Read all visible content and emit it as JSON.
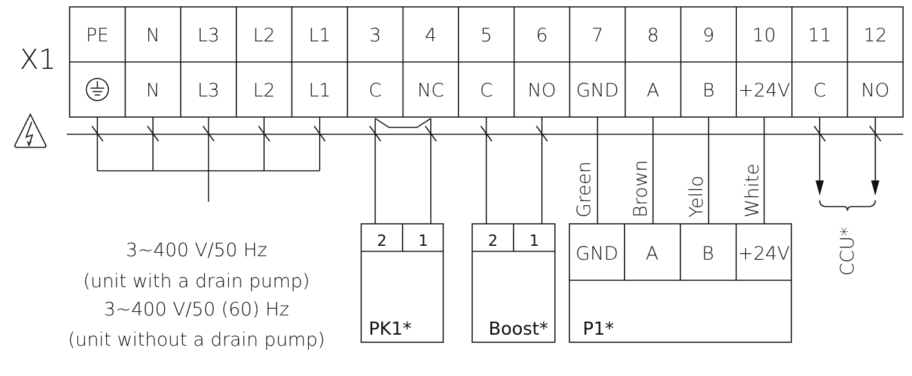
{
  "block": {
    "label": "X1",
    "top": [
      "PE",
      "N",
      "L3",
      "L2",
      "L1",
      "3",
      "4",
      "5",
      "6",
      "7",
      "8",
      "9",
      "10",
      "11",
      "12"
    ],
    "bottom": [
      "earth-icon",
      "N",
      "L3",
      "L2",
      "L1",
      "C",
      "NC",
      "C",
      "NO",
      "GND",
      "A",
      "B",
      "+24V",
      "C",
      "NO"
    ]
  },
  "wire_colors": [
    "Green",
    "Brown",
    "Yello",
    "White"
  ],
  "pk1": {
    "pins": [
      "2",
      "1"
    ],
    "label": "PK1*"
  },
  "boost": {
    "pins": [
      "2",
      "1"
    ],
    "label": "Boost*"
  },
  "p1": {
    "pins": [
      "GND",
      "A",
      "B",
      "+24V"
    ],
    "label": "P1*"
  },
  "ccu": {
    "label": "CCU*"
  },
  "supply": {
    "lines": [
      "3~400 V/50 Hz",
      "(unit with a drain pump)",
      "3~400 V/50 (60) Hz",
      "(unit without a drain pump)"
    ]
  },
  "icons": {
    "warning": "high-voltage-warning-icon",
    "earth": "protective-earth-icon"
  }
}
